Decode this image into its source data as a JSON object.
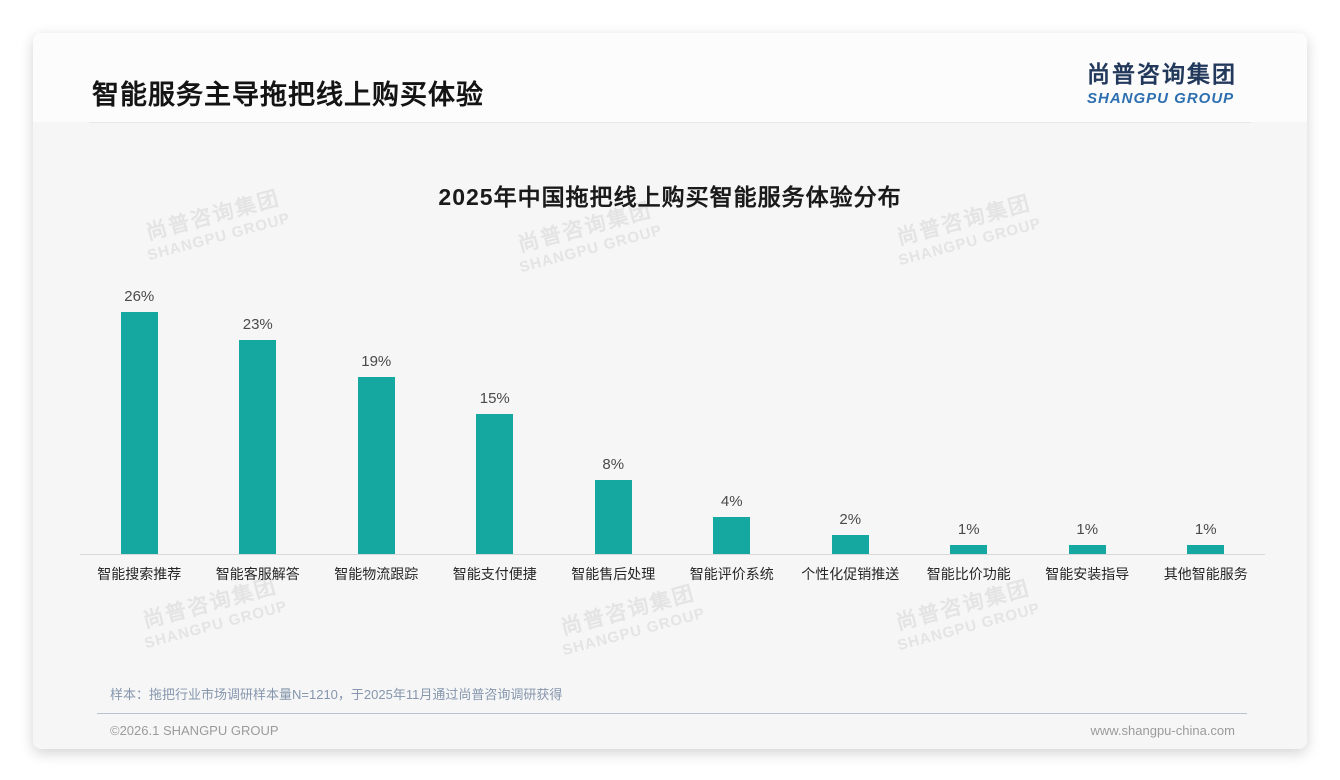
{
  "page": {
    "title": "智能服务主导拖把线上购买体验",
    "logo": {
      "cn": "尚普咨询集团",
      "en": "SHANGPU GROUP"
    },
    "watermark": {
      "cn": "尚普咨询集团",
      "en": "SHANGPU GROUP"
    },
    "sample_note": "样本：拖把行业市场调研样本量N=1210，于2025年11月通过尚普咨询调研获得",
    "footer_left": "©2026.1 SHANGPU GROUP",
    "footer_right": "www.shangpu-china.com"
  },
  "chart_data": {
    "type": "bar",
    "title": "2025年中国拖把线上购买智能服务体验分布",
    "categories": [
      "智能搜索推荐",
      "智能客服解答",
      "智能物流跟踪",
      "智能支付便捷",
      "智能售后处理",
      "智能评价系统",
      "个性化促销推送",
      "智能比价功能",
      "智能安装指导",
      "其他智能服务"
    ],
    "values": [
      26,
      23,
      19,
      15,
      8,
      4,
      2,
      1,
      1,
      1
    ],
    "value_labels": [
      "26%",
      "23%",
      "19%",
      "15%",
      "8%",
      "4%",
      "2%",
      "1%",
      "1%",
      "1%"
    ],
    "unit": "%",
    "bar_color": "#14a8a1",
    "ylim": [
      0,
      28
    ],
    "grid": false,
    "legend": "none",
    "xlabel": "",
    "ylabel": ""
  },
  "colors": {
    "accent_teal": "#14a8a1",
    "logo_navy": "#23395c",
    "logo_blue": "#2d6fb0",
    "note_bluegray": "#8596ad",
    "axis_line": "#d9d9d9"
  }
}
